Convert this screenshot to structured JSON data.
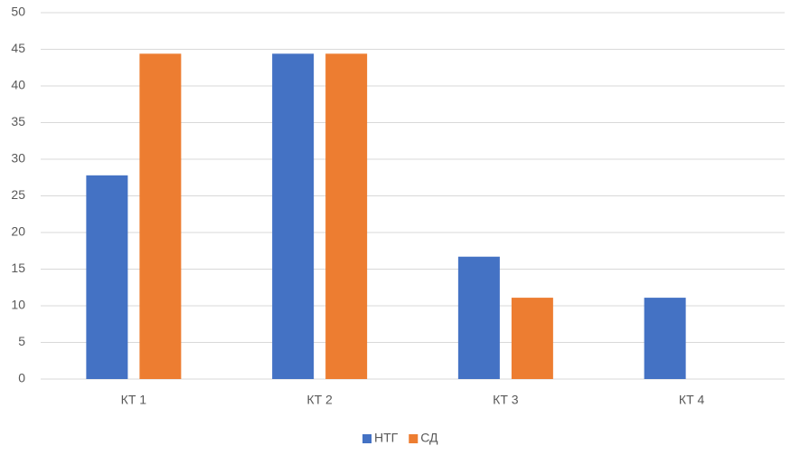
{
  "chart_data": {
    "type": "bar",
    "categories": [
      "КТ 1",
      "КТ 2",
      "КТ 3",
      "КТ 4"
    ],
    "series": [
      {
        "name": "НТГ",
        "color": "#4472c4",
        "values": [
          27.8,
          44.4,
          16.7,
          11.1
        ]
      },
      {
        "name": "СД",
        "color": "#ed7d31",
        "values": [
          44.4,
          44.4,
          11.1,
          0
        ]
      }
    ],
    "ylim": [
      0,
      50
    ],
    "yticks": [
      0,
      5,
      10,
      15,
      20,
      25,
      30,
      35,
      40,
      45,
      50
    ],
    "grid": true,
    "legend": "bottom"
  }
}
